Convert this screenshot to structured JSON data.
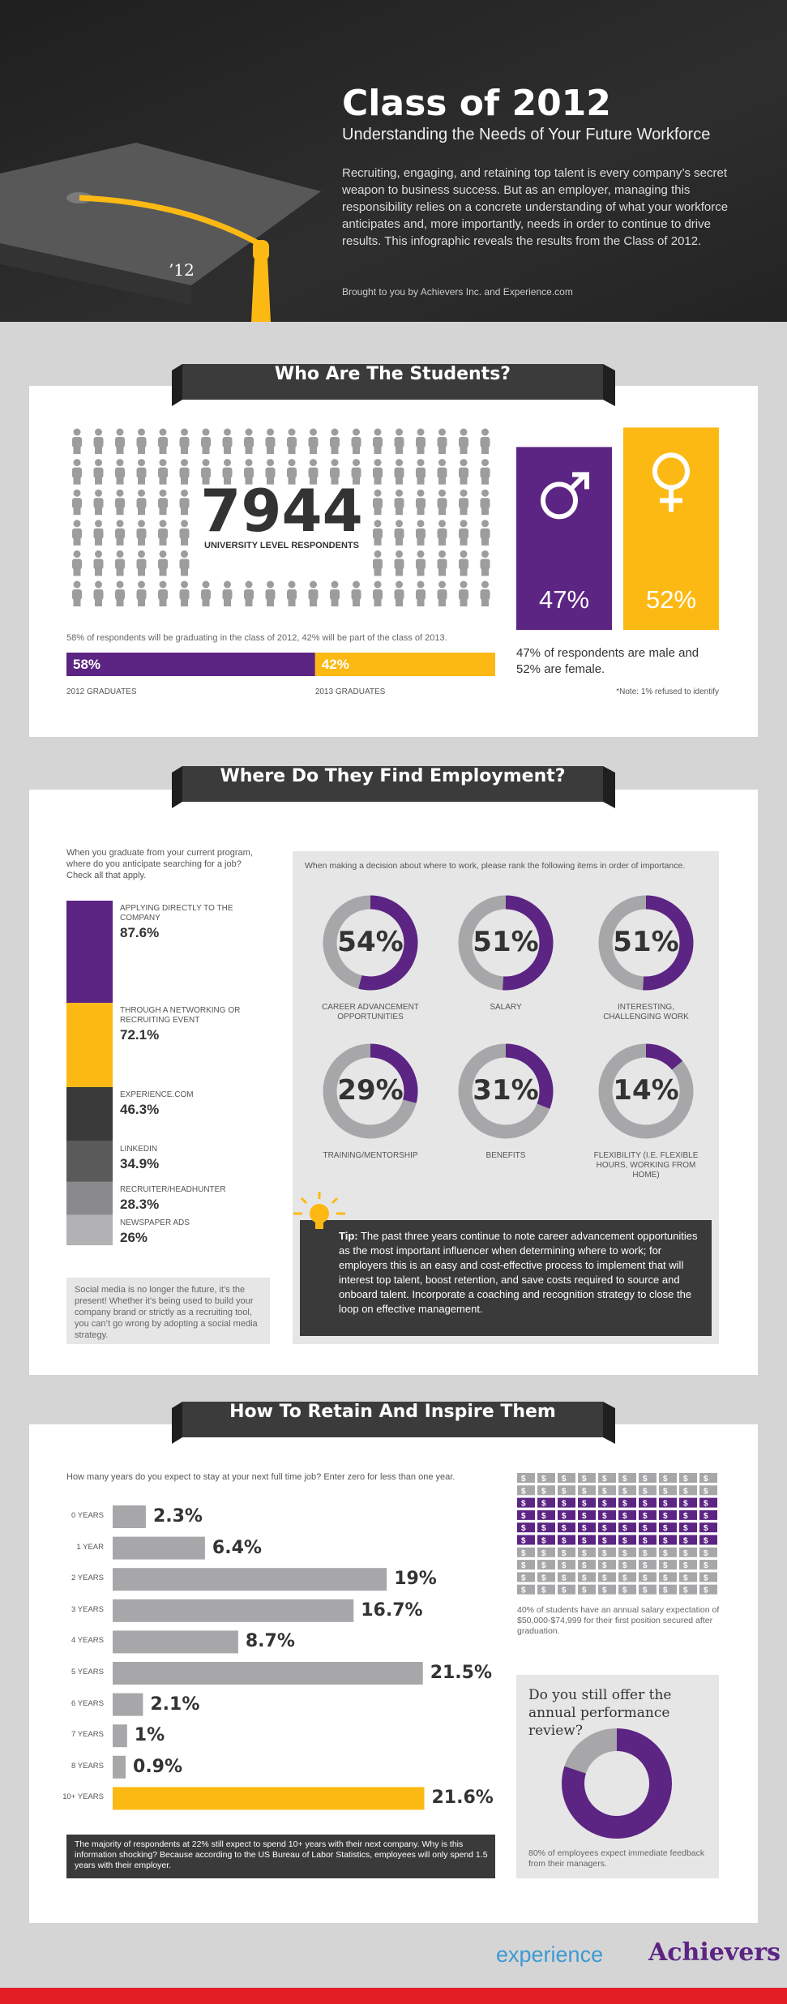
{
  "header": {
    "title": "Class of 2012",
    "subtitle": "Understanding the Needs of Your Future Workforce",
    "intro": "Recruiting, engaging, and retaining top talent is every company’s secret weapon to business success.  But as an employer, managing this responsibility relies on a concrete understanding of what your workforce anticipates and, more importantly, needs in order to continue to drive results.  This infographic reveals the results from the Class of 2012.",
    "credit": "Brought to you by Achievers Inc. and Experience.com",
    "cap_label": "’12"
  },
  "students": {
    "heading": "Who Are The Students?",
    "respondents": 7944,
    "respondents_label": "UNIVERSITY LEVEL RESPONDENTS",
    "grad_note": "58% of respondents will be graduating in the class of 2012, 42% will be part of the class of 2013.",
    "graduation": {
      "type": "bar",
      "categories": [
        "2012 GRADUATES",
        "2013 GRADUATES"
      ],
      "values": [
        58,
        42
      ],
      "value_labels": [
        "58%",
        "42%"
      ],
      "colors": [
        "#5c2483",
        "#fdb913"
      ]
    },
    "gender": {
      "type": "bar",
      "values": [
        47,
        52
      ],
      "value_labels": [
        "47%",
        "52%"
      ],
      "colors": [
        "#5c2483",
        "#fdb913"
      ]
    },
    "gender_note": "47% of respondents are male and 52% are female.",
    "refused_note": "*Note: 1% refused to identify"
  },
  "employment": {
    "heading": "Where Do They Find Employment?",
    "search_question": "When you graduate from your current program, where do you anticipate searching for a job? Check all that apply.",
    "channels": {
      "type": "bar",
      "categories": [
        "APPLYING DIRECTLY TO THE COMPANY",
        "THROUGH A NETWORKING OR RECRUITING EVENT",
        "EXPERIENCE.COM",
        "LINKEDIN",
        "RECRUITER/HEADHUNTER",
        "NEWSPAPER ADS"
      ],
      "values": [
        87.6,
        72.1,
        46.3,
        34.9,
        28.3,
        26
      ],
      "value_labels": [
        "87.6%",
        "72.1%",
        "46.3%",
        "34.9%",
        "28.3%",
        "26%"
      ],
      "colors": [
        "#5c2483",
        "#fdb913",
        "#3a3a3a",
        "#5a5a5b",
        "#8a8a8c",
        "#b2b2b4"
      ]
    },
    "social_note": "Social media is no longer the future, it’s the present! Whether it’s being used to build your company brand or strictly as a recruiting tool, you can’t go wrong by adopting a social media strategy.",
    "rank_prompt": "When making a decision about where to work, please rank the following items in order of importance.",
    "priorities": {
      "type": "donut",
      "categories": [
        "CAREER ADVANCEMENT OPPORTUNITIES",
        "SALARY",
        "INTERESTING, CHALLENGING WORK",
        "TRAINING/MENTORSHIP",
        "BENEFITS",
        "FLEXIBILITY (I.E. FLEXIBLE HOURS, WORKING FROM HOME)"
      ],
      "values": [
        54,
        51,
        51,
        29,
        31,
        14
      ],
      "value_labels": [
        "54%",
        "51%",
        "51%",
        "29%",
        "31%",
        "14%"
      ],
      "color": "#5c2483",
      "track_color": "#a7a7a9"
    },
    "tip_label": "Tip:",
    "tip": "The past three years continue to note career advancement opportunities as the most important influencer when determining where to work; for employers this is an easy and cost-effective process to implement that will interest top talent, boost retention, and save costs required to source and onboard talent.  Incorporate a coaching and recognition strategy to close the loop on effective management."
  },
  "retention": {
    "heading": "How To Retain And Inspire Them",
    "tenure_question": "How many years do you expect to stay at your next full time job? Enter zero for less than one year.",
    "tenure": {
      "type": "bar",
      "categories": [
        "0 YEARS",
        "1 YEAR",
        "2 YEARS",
        "3 YEARS",
        "4 YEARS",
        "5 YEARS",
        "6 YEARS",
        "7 YEARS",
        "8 YEARS",
        "10+ YEARS"
      ],
      "values": [
        2.3,
        6.4,
        19,
        16.7,
        8.7,
        21.5,
        2.1,
        1,
        0.9,
        21.6
      ],
      "value_labels": [
        "2.3%",
        "6.4%",
        "19%",
        "16.7%",
        "8.7%",
        "21.5%",
        "2.1%",
        "1%",
        "0.9%",
        "21.6%"
      ],
      "colors": [
        "#a7a7a9",
        "#a7a7a9",
        "#a7a7a9",
        "#a7a7a9",
        "#a7a7a9",
        "#a7a7a9",
        "#a7a7a9",
        "#a7a7a9",
        "#a7a7a9",
        "#fdb913"
      ]
    },
    "tenure_note": "The majority of respondents at 22% still expect to spend 10+ years with their next company.  Why is this information shocking?  Because according to the US Bureau of Labor Statistics, employees will only spend 1.5 years with their employer.",
    "salary": {
      "icon": "$",
      "value": 40,
      "color": "#5c2483",
      "other_color": "#a7a7a9",
      "note": "40% of students have an annual salary expectation of $50,000-$74,999 for their first position secured after graduation."
    },
    "review": {
      "type": "pie",
      "question": "Do you still offer the annual performance review?",
      "values": [
        80,
        20
      ],
      "colors": [
        "#5c2483",
        "#a7a7a9"
      ],
      "note": "80% of employees expect immediate feedback from their managers."
    }
  },
  "footer": {
    "brand_1": "experience",
    "brand_2": "Achievers"
  }
}
